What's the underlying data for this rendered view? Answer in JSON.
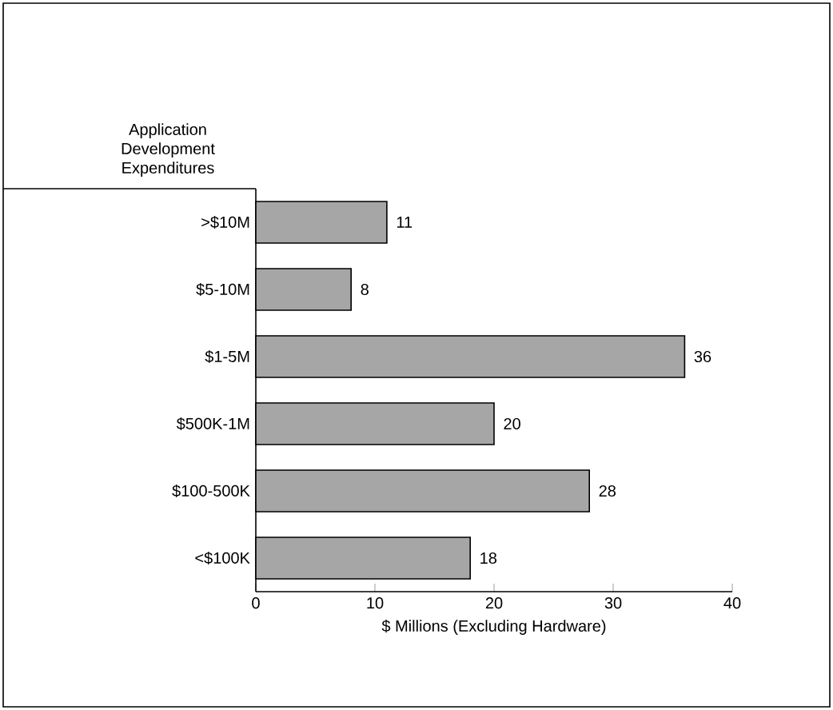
{
  "chart_data": {
    "type": "bar",
    "orientation": "horizontal",
    "title": "Application Development Expenditures",
    "xlabel": "$ Millions (Excluding Hardware)",
    "categories": [
      ">$10M",
      "$5-10M",
      "$1-5M",
      "$500K-1M",
      "$100-500K",
      "<$100K"
    ],
    "values": [
      11,
      8,
      36,
      20,
      28,
      18
    ],
    "color": "#a6a6a6",
    "xlim": [
      0,
      40
    ],
    "xticks": [
      0,
      10,
      20,
      30,
      40
    ],
    "data_labels": true
  }
}
